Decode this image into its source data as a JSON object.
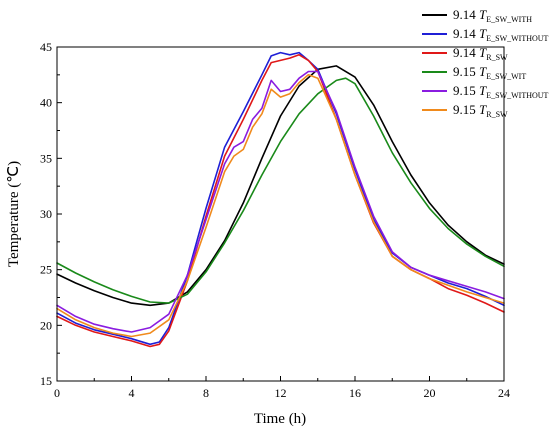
{
  "chart_data": {
    "type": "line",
    "title": "",
    "xlabel": "Time (h)",
    "ylabel": "Temperature (℃)",
    "xlim": [
      0,
      24
    ],
    "ylim": [
      15,
      45
    ],
    "x_ticks": [
      "0",
      "4",
      "8",
      "12",
      "16",
      "20",
      "24"
    ],
    "y_ticks": [
      "15",
      "20",
      "25",
      "30",
      "35",
      "40",
      "45"
    ],
    "grid": false,
    "legend_position": "top-right",
    "series": [
      {
        "name": "9.14 T_E_SW_WITH",
        "legend_prefix": "9.14",
        "legend_var": "T",
        "legend_sub": "E_SW_WITH",
        "color": "#000000",
        "x": [
          0,
          1,
          2,
          3,
          4,
          5,
          6,
          7,
          8,
          9,
          10,
          11,
          12,
          13,
          14,
          15,
          16,
          17,
          18,
          19,
          20,
          21,
          22,
          23,
          24
        ],
        "y": [
          24.6,
          23.8,
          23.1,
          22.5,
          22.0,
          21.8,
          22.0,
          23.0,
          25.0,
          27.6,
          31.0,
          35.0,
          38.8,
          41.5,
          43.0,
          43.3,
          42.3,
          39.8,
          36.5,
          33.5,
          31.0,
          29.0,
          27.5,
          26.3,
          25.5
        ]
      },
      {
        "name": "9.14 T_E_SW_WITHOUT",
        "legend_prefix": "9.14",
        "legend_var": "T",
        "legend_sub": "E_SW_WITHOUT",
        "color": "#1f1fd6",
        "x": [
          0,
          1,
          2,
          3,
          4,
          5,
          5.5,
          6,
          7,
          8,
          9,
          10,
          11,
          11.5,
          12,
          12.5,
          13,
          13.5,
          14,
          15,
          16,
          17,
          18,
          19,
          20,
          21,
          22,
          23,
          24
        ],
        "y": [
          21.1,
          20.2,
          19.6,
          19.2,
          18.8,
          18.3,
          18.5,
          19.8,
          24.5,
          30.5,
          36.0,
          39.2,
          42.5,
          44.2,
          44.5,
          44.3,
          44.5,
          43.8,
          43.0,
          39.0,
          34.0,
          29.5,
          26.5,
          25.2,
          24.5,
          23.8,
          23.3,
          22.6,
          21.8
        ]
      },
      {
        "name": "9.14 T_R_SW",
        "legend_prefix": "9.14",
        "legend_var": "T",
        "legend_sub": "R_SW",
        "color": "#e01818",
        "x": [
          0,
          1,
          2,
          3,
          4,
          5,
          5.5,
          6,
          7,
          8,
          9,
          10,
          11,
          11.5,
          12,
          12.5,
          13,
          13.5,
          14,
          15,
          16,
          17,
          18,
          19,
          20,
          21,
          22,
          23,
          24
        ],
        "y": [
          20.8,
          20.0,
          19.4,
          19.0,
          18.6,
          18.1,
          18.3,
          19.5,
          24.0,
          29.8,
          35.2,
          38.5,
          42.0,
          43.6,
          43.8,
          44.0,
          44.3,
          43.8,
          42.8,
          38.5,
          33.5,
          29.2,
          26.2,
          25.0,
          24.2,
          23.3,
          22.7,
          22.0,
          21.2
        ]
      },
      {
        "name": "9.15 T_E_SW_WIT",
        "legend_prefix": "9.15",
        "legend_var": "T",
        "legend_sub": "E_SW_WIT",
        "color": "#1a8a1a",
        "x": [
          0,
          1,
          2,
          3,
          4,
          5,
          6,
          7,
          8,
          9,
          10,
          11,
          12,
          13,
          14,
          15,
          15.5,
          16,
          17,
          18,
          19,
          20,
          21,
          22,
          23,
          24
        ],
        "y": [
          25.6,
          24.7,
          23.9,
          23.2,
          22.6,
          22.1,
          22.0,
          22.8,
          24.8,
          27.4,
          30.3,
          33.5,
          36.5,
          39.0,
          40.8,
          42.0,
          42.2,
          41.7,
          38.8,
          35.5,
          32.8,
          30.5,
          28.7,
          27.3,
          26.2,
          25.3
        ]
      },
      {
        "name": "9.15 T_E_SW_WITHOUT",
        "legend_prefix": "9.15",
        "legend_var": "T",
        "legend_sub": "E_SW_WITHOUT",
        "color": "#8a1ce0",
        "x": [
          0,
          1,
          2,
          3,
          4,
          5,
          6,
          7,
          8,
          9,
          9.5,
          10,
          10.5,
          11,
          11.5,
          12,
          12.5,
          13,
          13.5,
          14,
          15,
          16,
          17,
          18,
          19,
          20,
          21,
          22,
          23,
          24
        ],
        "y": [
          21.8,
          20.8,
          20.1,
          19.7,
          19.4,
          19.8,
          21.0,
          24.5,
          29.5,
          34.5,
          36.0,
          36.5,
          38.5,
          39.5,
          42.0,
          41.0,
          41.2,
          42.2,
          42.8,
          42.8,
          39.2,
          34.2,
          29.8,
          26.6,
          25.2,
          24.5,
          24.0,
          23.5,
          23.0,
          22.4
        ]
      },
      {
        "name": "9.15 T_R_SW",
        "legend_prefix": "9.15",
        "legend_var": "T",
        "legend_sub": "R_SW",
        "color": "#f08a1c",
        "x": [
          0,
          1,
          2,
          3,
          4,
          5,
          6,
          7,
          8,
          9,
          9.5,
          10,
          10.5,
          11,
          11.5,
          12,
          12.5,
          13,
          13.5,
          14,
          15,
          16,
          17,
          18,
          19,
          20,
          21,
          22,
          23,
          24
        ],
        "y": [
          21.5,
          20.5,
          19.8,
          19.3,
          19.0,
          19.3,
          20.5,
          24.0,
          28.8,
          33.8,
          35.2,
          35.8,
          37.8,
          39.0,
          41.2,
          40.5,
          40.8,
          41.8,
          42.5,
          42.2,
          38.5,
          33.5,
          29.3,
          26.2,
          25.0,
          24.2,
          23.6,
          23.0,
          22.5,
          22.0
        ]
      }
    ]
  }
}
